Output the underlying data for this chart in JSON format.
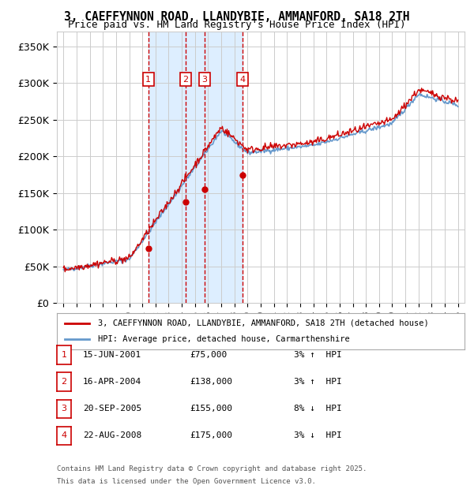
{
  "title": "3, CAEFFYNNON ROAD, LLANDYBIE, AMMANFORD, SA18 2TH",
  "subtitle": "Price paid vs. HM Land Registry's House Price Index (HPI)",
  "ylim": [
    0,
    370000
  ],
  "yticks": [
    0,
    50000,
    100000,
    150000,
    200000,
    250000,
    300000,
    350000
  ],
  "ytick_labels": [
    "£0",
    "£50K",
    "£100K",
    "£150K",
    "£200K",
    "£250K",
    "£300K",
    "£350K"
  ],
  "xlim": [
    1994.5,
    2025.5
  ],
  "sales": [
    {
      "num": 1,
      "year": 2001.45,
      "price": 75000,
      "date": "15-JUN-2001",
      "label_price": "£75,000",
      "pct": "3%",
      "dir": "↑"
    },
    {
      "num": 2,
      "year": 2004.29,
      "price": 138000,
      "date": "16-APR-2004",
      "label_price": "£138,000",
      "pct": "3%",
      "dir": "↑"
    },
    {
      "num": 3,
      "year": 2005.72,
      "price": 155000,
      "date": "20-SEP-2005",
      "label_price": "£155,000",
      "pct": "8%",
      "dir": "↓"
    },
    {
      "num": 4,
      "year": 2008.64,
      "price": 175000,
      "date": "22-AUG-2008",
      "label_price": "£175,000",
      "pct": "3%",
      "dir": "↓"
    }
  ],
  "hpi_color": "#6699cc",
  "price_color": "#cc0000",
  "shade_color": "#ddeeff",
  "dashed_color": "#cc0000",
  "grid_color": "#cccccc",
  "background_color": "#ffffff",
  "legend_label_price": "3, CAEFFYNNON ROAD, LLANDYBIE, AMMANFORD, SA18 2TH (detached house)",
  "legend_label_hpi": "HPI: Average price, detached house, Carmarthenshire",
  "footer1": "Contains HM Land Registry data © Crown copyright and database right 2025.",
  "footer2": "This data is licensed under the Open Government Licence v3.0."
}
